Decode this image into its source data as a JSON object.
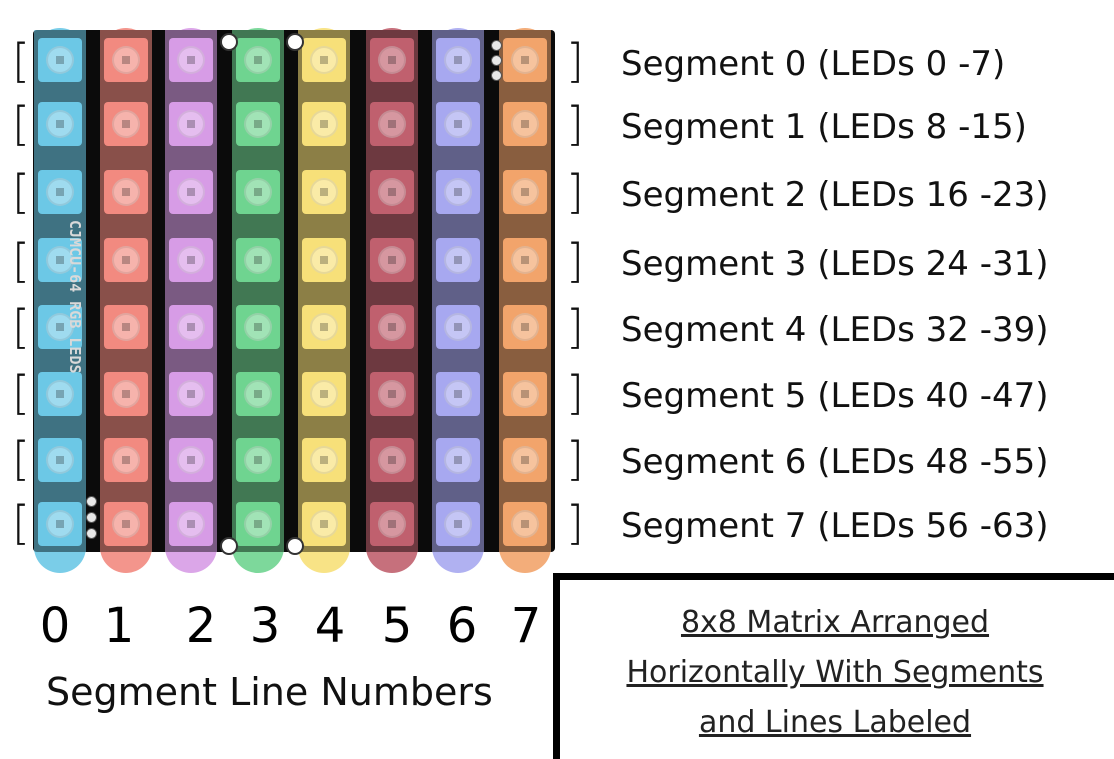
{
  "board": {
    "silkscreen": "CJMCU-64 RGB LEDS",
    "columns": [
      {
        "line": "0",
        "color": "#6cc8e6"
      },
      {
        "line": "1",
        "color": "#f28a80"
      },
      {
        "line": "2",
        "color": "#d79ce6"
      },
      {
        "line": "3",
        "color": "#6fd490"
      },
      {
        "line": "4",
        "color": "#f7e079"
      },
      {
        "line": "5",
        "color": "#c0606e"
      },
      {
        "line": "6",
        "color": "#a7a8f0"
      },
      {
        "line": "7",
        "color": "#f2a46b"
      }
    ]
  },
  "segments": [
    "Segment 0 (LEDs 0 -7)",
    "Segment 1 (LEDs 8 -15)",
    "Segment 2 (LEDs 16 -23)",
    "Segment 3 (LEDs 24 -31)",
    "Segment 4 (LEDs 32 -39)",
    "Segment 5 (LEDs 40 -47)",
    "Segment 6 (LEDs 48 -55)",
    "Segment 7 (LEDs 56 -63)"
  ],
  "bracket_open": "[",
  "bracket_close": "]",
  "line_numbers": [
    "0",
    "1",
    "2",
    "3",
    "4",
    "5",
    "6",
    "7"
  ],
  "line_caption": "Segment Line Numbers",
  "note": {
    "lines": [
      "8x8 Matrix Arranged",
      "Horizontally With Segments",
      "and Lines Labeled"
    ]
  }
}
